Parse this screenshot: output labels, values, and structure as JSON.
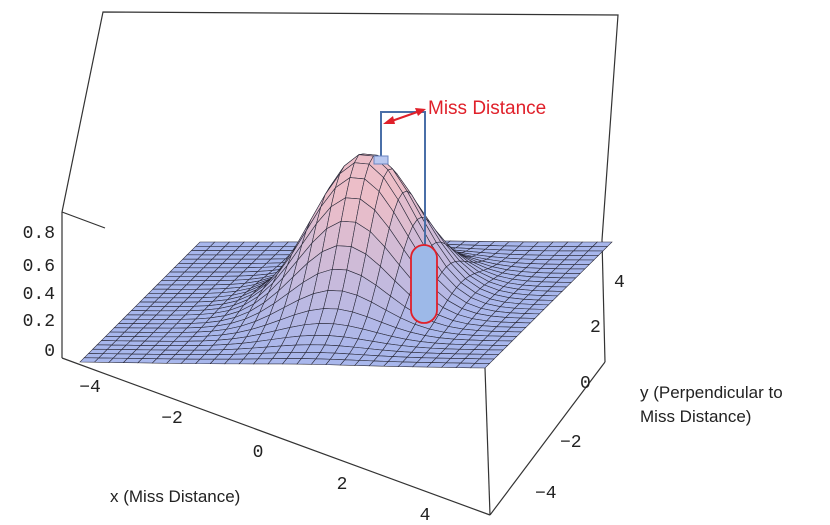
{
  "z_axis": {
    "ticks": [
      "0.8",
      "0.6",
      "0.4",
      "0.2",
      "0"
    ]
  },
  "x_axis": {
    "label": "x (Miss Distance)",
    "ticks": [
      "−4",
      "−2",
      "0",
      "2",
      "4"
    ]
  },
  "y_axis": {
    "label_lines": [
      "y (Perpendicular to",
      "Miss Distance)"
    ],
    "ticks": [
      "4",
      "2",
      "0",
      "−2",
      "−4"
    ]
  },
  "annotation": "Miss Distance"
}
